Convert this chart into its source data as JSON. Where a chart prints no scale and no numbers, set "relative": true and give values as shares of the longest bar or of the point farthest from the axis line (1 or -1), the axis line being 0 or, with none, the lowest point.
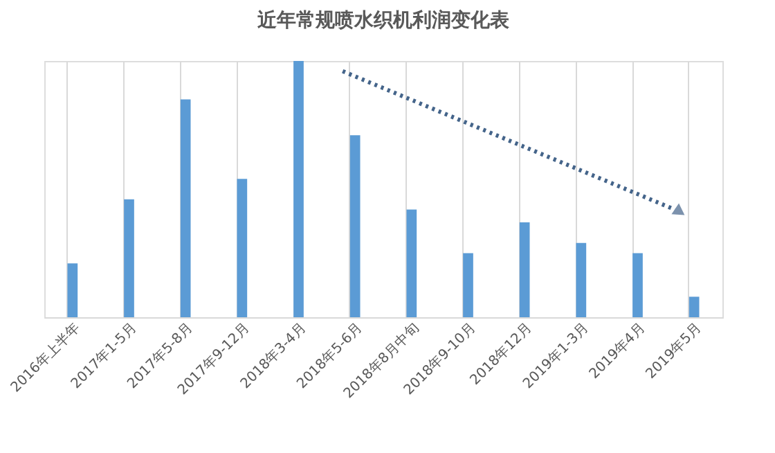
{
  "chart_data": {
    "type": "bar",
    "title": "近年常规喷水织机利润变化表",
    "categories": [
      "2016年上半年",
      "2017年1-5月",
      "2017年5-8月",
      "2017年9-12月",
      "2018年3-4月",
      "2018年5-6月",
      "2018年8月中旬",
      "2018年9-10月",
      "2018年12月",
      "2019年1-3月",
      "2019年4月",
      "2019年5月"
    ],
    "values": [
      0.21,
      0.46,
      0.85,
      0.54,
      1,
      0.71,
      0.42,
      0.25,
      0.37,
      0.29,
      0.25,
      0.08
    ],
    "color": "#5b9bd5",
    "relative": true,
    "grid": "x"
  }
}
